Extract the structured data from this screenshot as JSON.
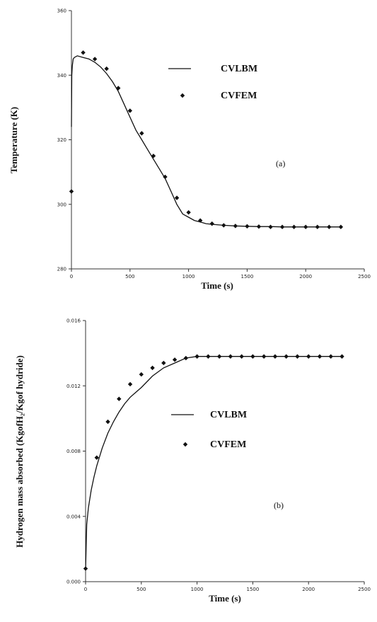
{
  "chart_data": [
    {
      "type": "line",
      "panel_label": "(a)",
      "xlabel": "Time (s)",
      "ylabel": "Temperature (K)",
      "xlim": [
        0,
        2500
      ],
      "ylim": [
        280,
        360
      ],
      "xticks": [
        "0",
        "500",
        "1000",
        "1500",
        "2000",
        "2500"
      ],
      "yticks": [
        "280",
        "300",
        "320",
        "340",
        "360"
      ],
      "legend_position": "top-right",
      "series": [
        {
          "name": "CVLBM",
          "style": "line",
          "x": [
            0,
            3,
            8,
            15,
            25,
            50,
            100,
            150,
            200,
            250,
            300,
            350,
            400,
            450,
            500,
            550,
            600,
            650,
            700,
            750,
            800,
            850,
            900,
            950,
            1000,
            1050,
            1100,
            1150,
            1200,
            1300,
            1400,
            1500,
            1600,
            1700,
            1800,
            1900,
            2000,
            2100,
            2200,
            2300
          ],
          "y": [
            324,
            340,
            343,
            345,
            345.5,
            346,
            345.5,
            345,
            344,
            342.5,
            340.5,
            338,
            335,
            331,
            327,
            323,
            320,
            317,
            314,
            311,
            308,
            304,
            300,
            297,
            296,
            295,
            294.5,
            294,
            293.8,
            293.5,
            293.3,
            293.2,
            293.1,
            293.1,
            293,
            293,
            293,
            293,
            293,
            293
          ]
        },
        {
          "name": "CVFEM",
          "style": "marker",
          "x": [
            0,
            100,
            200,
            300,
            400,
            500,
            600,
            700,
            800,
            900,
            1000,
            1100,
            1200,
            1300,
            1400,
            1500,
            1600,
            1700,
            1800,
            1900,
            2000,
            2100,
            2200,
            2300
          ],
          "y": [
            304,
            347,
            345,
            342,
            336,
            329,
            322,
            315,
            308.5,
            302,
            297.5,
            295,
            294,
            293.5,
            293.3,
            293.2,
            293.1,
            293,
            293,
            293,
            293,
            293,
            293,
            293
          ]
        }
      ]
    },
    {
      "type": "line",
      "panel_label": "(b)",
      "xlabel": "Time (s)",
      "ylabel": "Hydrogen mass absorbed (KgofH₂/Kgof hydride)",
      "xlim": [
        0,
        2500
      ],
      "ylim": [
        0,
        0.016
      ],
      "xticks": [
        "0",
        "500",
        "1000",
        "1500",
        "2000",
        "2500"
      ],
      "yticks": [
        "0.000",
        "0.004",
        "0.008",
        "0.012",
        "0.016"
      ],
      "legend_position": "center",
      "series": [
        {
          "name": "CVLBM",
          "style": "line",
          "x": [
            0,
            10,
            25,
            50,
            75,
            100,
            150,
            200,
            250,
            300,
            350,
            400,
            450,
            500,
            600,
            700,
            800,
            900,
            1000,
            1100,
            1200,
            1400,
            1600,
            1800,
            2000,
            2200,
            2300
          ],
          "y": [
            0.0007,
            0.0035,
            0.0045,
            0.0056,
            0.0064,
            0.0071,
            0.0082,
            0.0091,
            0.0098,
            0.0104,
            0.0109,
            0.0113,
            0.0116,
            0.0119,
            0.0126,
            0.0131,
            0.0134,
            0.0137,
            0.0138,
            0.0138,
            0.0138,
            0.0138,
            0.0138,
            0.0138,
            0.0138,
            0.0138,
            0.0138
          ]
        },
        {
          "name": "CVFEM",
          "style": "marker",
          "x": [
            0,
            100,
            200,
            300,
            400,
            500,
            600,
            700,
            800,
            900,
            1000,
            1100,
            1200,
            1300,
            1400,
            1500,
            1600,
            1700,
            1800,
            1900,
            2000,
            2100,
            2200,
            2300
          ],
          "y": [
            0.0008,
            0.0076,
            0.0098,
            0.0112,
            0.0121,
            0.0127,
            0.0131,
            0.0134,
            0.0136,
            0.0137,
            0.0138,
            0.0138,
            0.0138,
            0.0138,
            0.0138,
            0.0138,
            0.0138,
            0.0138,
            0.0138,
            0.0138,
            0.0138,
            0.0138,
            0.0138,
            0.0138
          ]
        }
      ]
    }
  ],
  "colors": {
    "line": "#111111",
    "marker": "#111111",
    "axis": "#333333"
  }
}
